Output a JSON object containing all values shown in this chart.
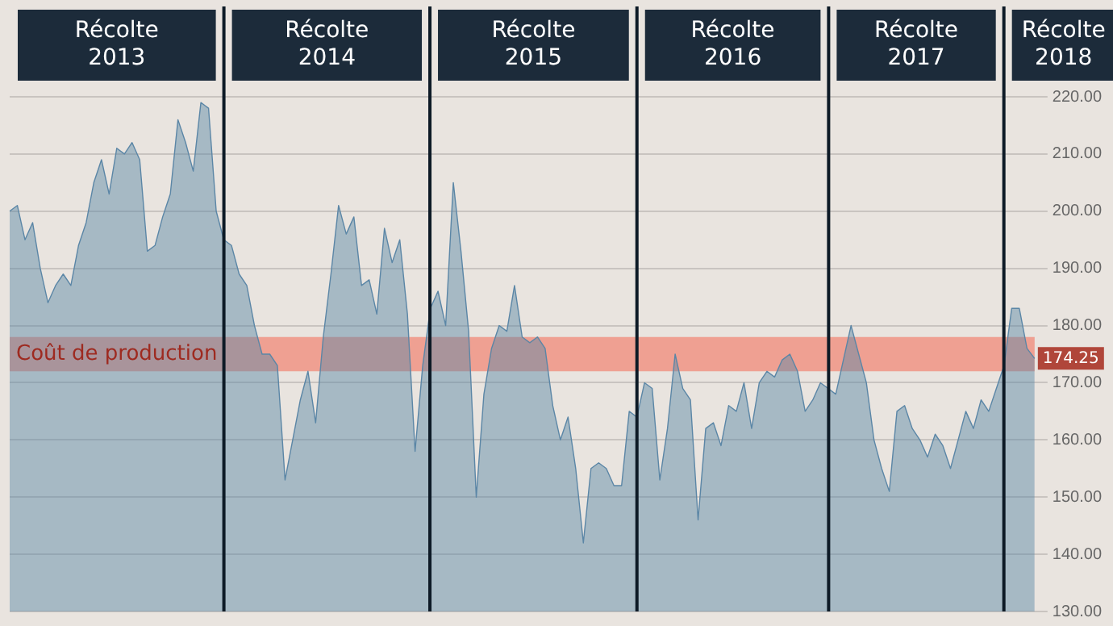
{
  "chart_data": {
    "type": "area",
    "categories": [
      null,
      null,
      null,
      null,
      null,
      null,
      null,
      null,
      null,
      null,
      null,
      null,
      null,
      null,
      null,
      null,
      null,
      null,
      null,
      null,
      null,
      null,
      null,
      null,
      null,
      null,
      null,
      null,
      null,
      null,
      null,
      null,
      null,
      null,
      null,
      null,
      null,
      null,
      null,
      null,
      null,
      null,
      null,
      null,
      null,
      null,
      null,
      null,
      null,
      null,
      null,
      null,
      null,
      null,
      null,
      null,
      null,
      null,
      null,
      null,
      null,
      null,
      null,
      null,
      null,
      null,
      null,
      null,
      null,
      null,
      null,
      null,
      null,
      null,
      null,
      null,
      null,
      null,
      null,
      null,
      null,
      null,
      null,
      null,
      null,
      null,
      null,
      null,
      null,
      null,
      null,
      null,
      null,
      null,
      null,
      null,
      null,
      null,
      null,
      null,
      null,
      null,
      null,
      null,
      null,
      null,
      null,
      null,
      null,
      null,
      null,
      null,
      null,
      null,
      null,
      null,
      null,
      null,
      null,
      null,
      null,
      null,
      null,
      null,
      null,
      null,
      null,
      null,
      null,
      null,
      null,
      null,
      null,
      null,
      null
    ],
    "series": [
      {
        "color": "#5b86a6",
        "values": [
          200,
          201,
          195,
          198,
          190,
          184,
          187,
          189,
          187,
          194,
          198,
          205,
          209,
          203,
          211,
          210,
          212,
          209,
          193,
          194,
          199,
          203,
          216,
          212,
          207,
          219,
          218,
          200,
          195,
          194,
          189,
          187,
          180,
          175,
          175,
          173,
          153,
          160,
          167,
          172,
          163,
          178,
          189,
          201,
          196,
          199,
          187,
          188,
          182,
          197,
          191,
          195,
          182,
          158,
          173,
          183,
          186,
          180,
          205,
          193,
          179,
          150,
          168,
          176,
          180,
          179,
          187,
          178,
          177,
          178,
          176,
          166,
          160,
          164,
          155,
          142,
          155,
          156,
          155,
          152,
          152,
          165,
          164,
          170,
          169,
          153,
          162,
          175,
          169,
          167,
          146,
          162,
          163,
          159,
          166,
          165,
          170,
          162,
          170,
          172,
          171,
          174,
          175,
          172,
          165,
          167,
          170,
          169,
          168,
          174,
          180,
          175,
          170,
          160,
          155,
          151,
          165,
          166,
          162,
          160,
          157,
          161,
          159,
          155,
          160,
          165,
          162,
          167,
          165,
          169,
          173,
          183,
          183,
          176,
          174.25
        ]
      }
    ],
    "ylim": [
      130,
      220
    ],
    "yticks": [
      {
        "value": 130,
        "label": "130.00"
      },
      {
        "value": 140,
        "label": "140.00"
      },
      {
        "value": 150,
        "label": "150.00"
      },
      {
        "value": 160,
        "label": "160.00"
      },
      {
        "value": 170,
        "label": "170.00"
      },
      {
        "value": 180,
        "label": "180.00"
      },
      {
        "value": 190,
        "label": "190.00"
      },
      {
        "value": 200,
        "label": "200.00"
      },
      {
        "value": 210,
        "label": "210.00"
      },
      {
        "value": 220,
        "label": "220.00"
      }
    ],
    "grid": "y",
    "tick_labels": "y",
    "bands": [
      {
        "axis": "y",
        "from": 172,
        "to": 178,
        "label": "Coût de production",
        "color": "#f08a78"
      }
    ],
    "annotations": [
      "Récolte 2013",
      "Récolte 2014",
      "Récolte 2015",
      "Récolte 2016",
      "Récolte 2017",
      "Récolte 2018",
      {
        "text": "174.25",
        "y": 174.25
      }
    ]
  }
}
